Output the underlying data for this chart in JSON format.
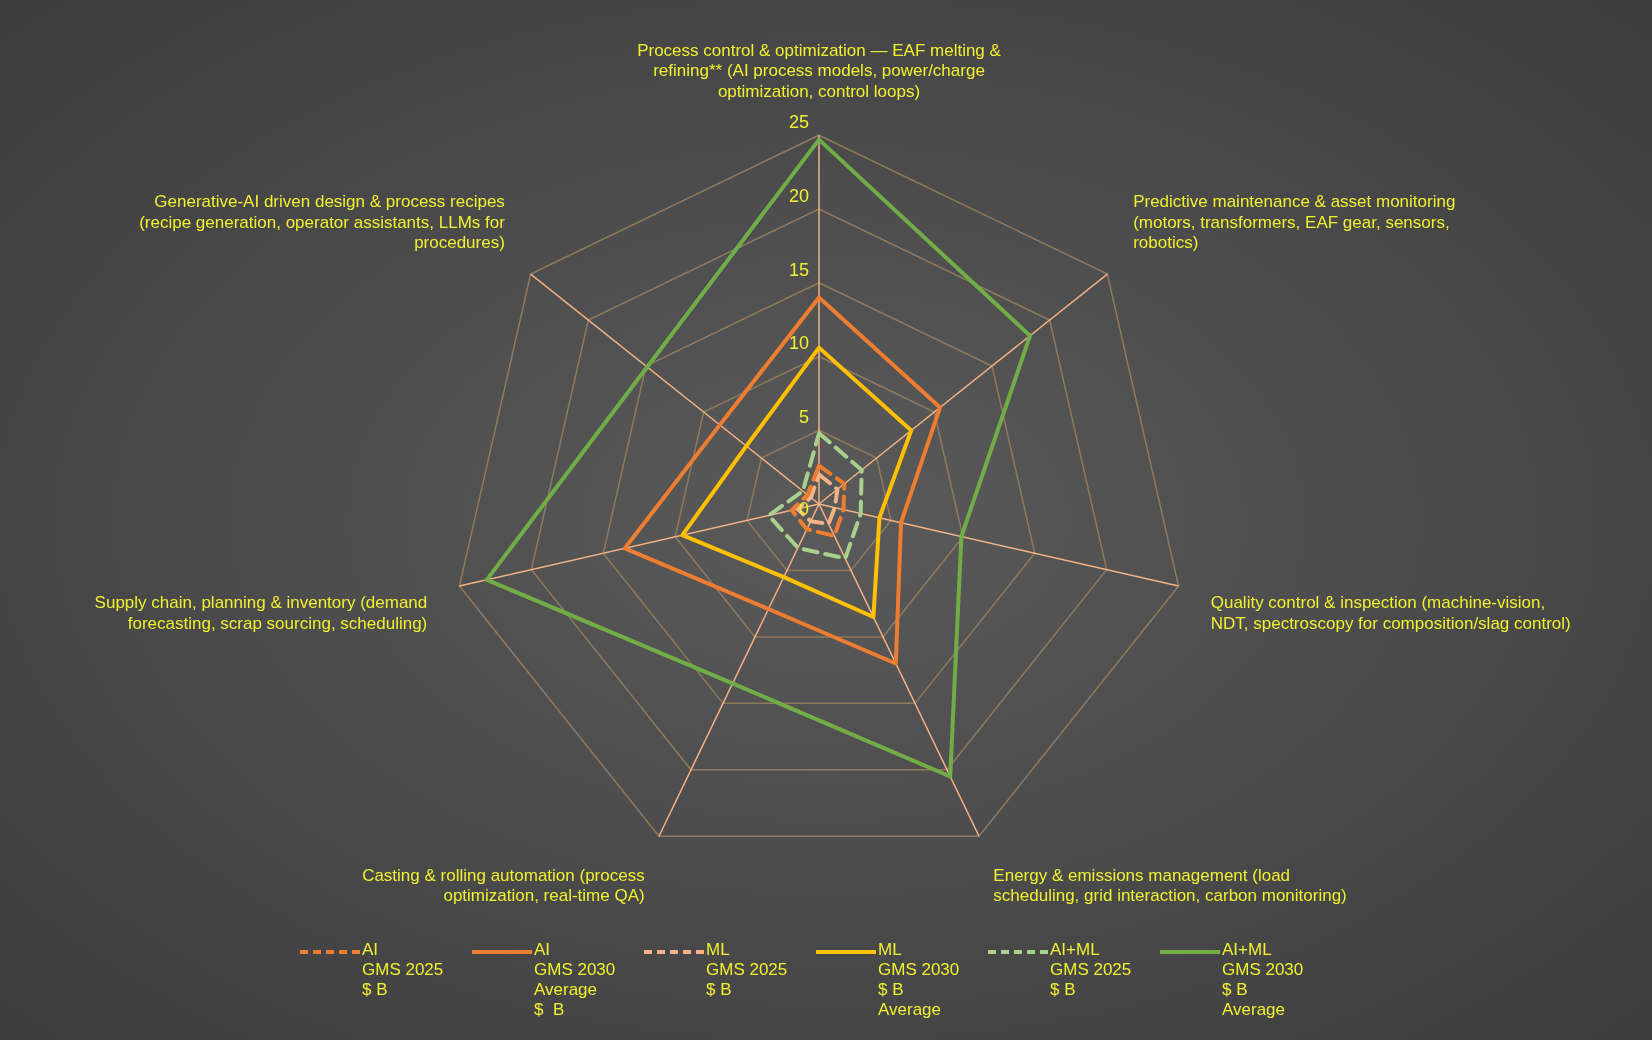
{
  "chart_data": {
    "type": "radar",
    "categories": [
      "Process control & optimization — EAF melting & refining** (AI process models, power/charge optimization, control loops)",
      "Predictive maintenance & asset monitoring (motors, transformers, EAF gear, sensors, robotics)",
      "Quality control & inspection (machine-vision, NDT, spectroscopy for composition/slag control)",
      "Energy & emissions management (load scheduling, grid interaction, carbon monitoring)",
      "Casting & rolling automation (process optimization, real-time QA)",
      "Supply chain, planning & inventory (demand forecasting, scrap sourcing, scheduling)",
      "Generative-AI driven design & process recipes (recipe generation, operator assistants, LLMs for procedures)"
    ],
    "series": [
      {
        "name": "AI\nGMS 2025\n$ B",
        "color": "#ed7d31",
        "line_style": "dashed",
        "values": [
          2.6,
          2.2,
          1.7,
          2.4,
          1.9,
          1.9,
          1.0
        ]
      },
      {
        "name": "AI\nGMS 2030\nAverage\n$  B",
        "color": "#ed7d31",
        "line_style": "solid",
        "values": [
          14.0,
          10.5,
          5.7,
          12.0,
          7.9,
          13.5,
          8.6
        ]
      },
      {
        "name": "ML\nGMS 2025\n$ B",
        "color": "#f4b183",
        "line_style": "dashed",
        "values": [
          2.0,
          1.6,
          1.1,
          1.5,
          1.3,
          1.5,
          0.7
        ]
      },
      {
        "name": "ML\nGMS 2030\n$ B\nAverage",
        "color": "#ffc000",
        "line_style": "solid",
        "values": [
          10.6,
          8.0,
          4.2,
          8.5,
          5.5,
          9.5,
          6.3
        ]
      },
      {
        "name": "AI+ML\nGMS 2025\n$ B",
        "color": "#a9d18e",
        "line_style": "dashed",
        "values": [
          4.8,
          3.7,
          2.9,
          4.1,
          3.3,
          3.5,
          1.4
        ]
      },
      {
        "name": "AI+ML\nGMS 2030\n$ B\nAverage",
        "color": "#70ad47",
        "line_style": "solid",
        "values": [
          24.7,
          18.3,
          9.9,
          20.5,
          13.5,
          23.1,
          14.9
        ]
      }
    ],
    "ylim": [
      0,
      25
    ],
    "yticks": [
      0,
      5,
      10,
      15,
      20,
      25
    ],
    "grid": true,
    "legend": "bottom",
    "marker": "none"
  }
}
